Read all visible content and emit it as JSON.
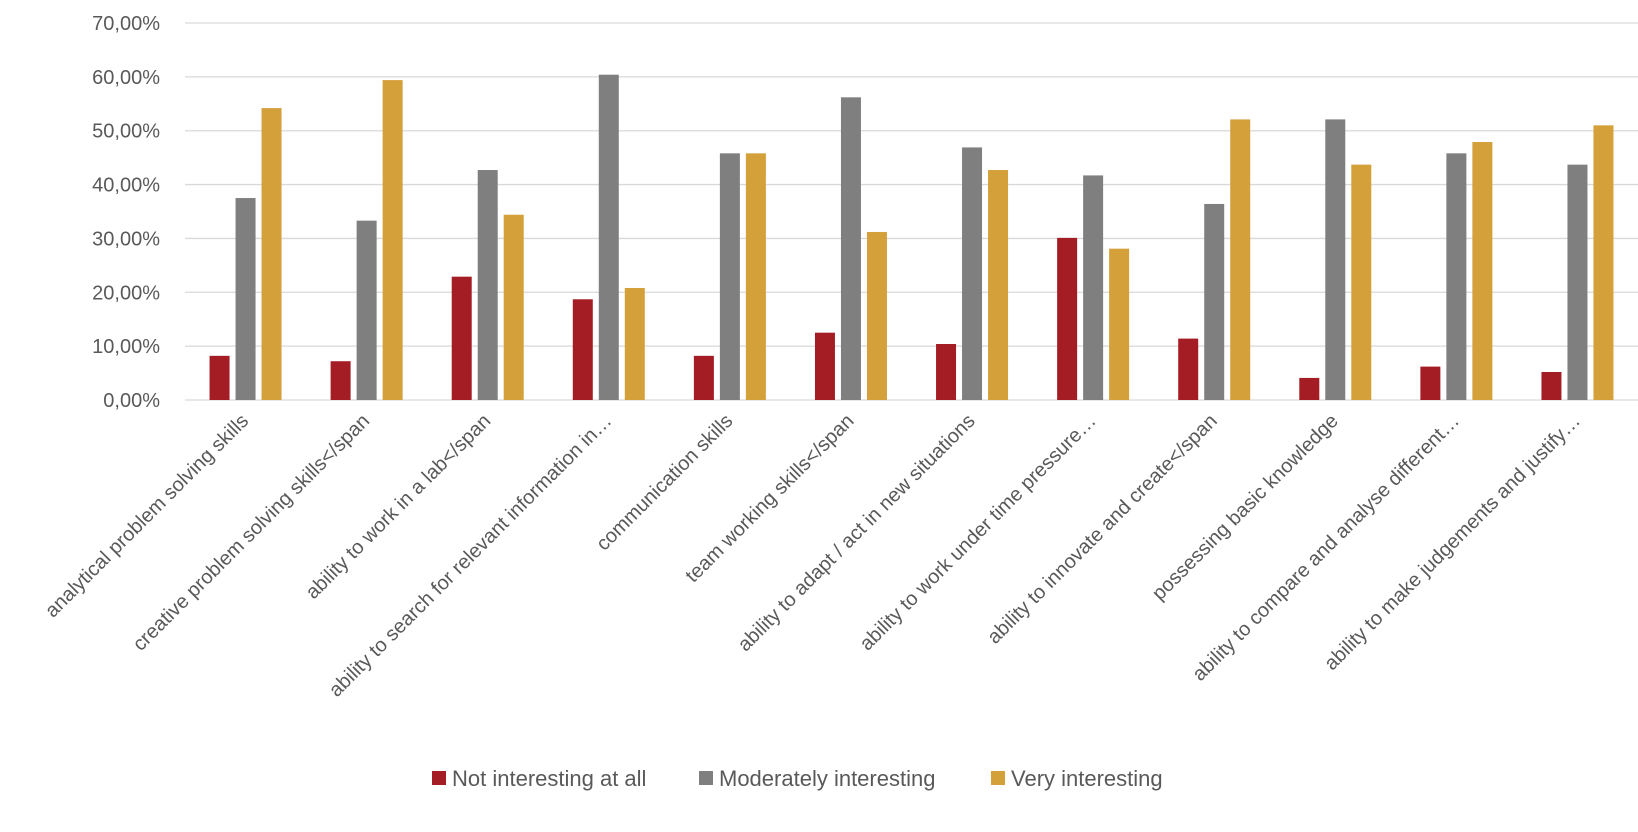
{
  "chart_data": {
    "type": "bar",
    "categories": [
      "analytical problem solving skills",
      "creative problem solving skills</span",
      "ability to work in a lab</span",
      "ability to search for relevant information in…",
      "communication skills",
      "team working skills</span",
      "ability to adapt / act in new situations",
      "ability to work under time pressure…",
      "ability to innovate and create</span",
      "possessing basic knowledge",
      "ability to compare and analyse different…",
      "ability to make judgements and justify…"
    ],
    "series": [
      {
        "name": "Not interesting at all",
        "color": "#A51D24",
        "values": [
          8.2,
          7.2,
          22.9,
          18.7,
          8.2,
          12.5,
          10.4,
          30.1,
          11.4,
          4.1,
          6.2,
          5.2
        ]
      },
      {
        "name": "Moderately interesting",
        "color": "#7F7F7F",
        "values": [
          37.5,
          33.3,
          42.7,
          60.4,
          45.8,
          56.2,
          46.9,
          41.7,
          36.4,
          52.1,
          45.8,
          43.7
        ]
      },
      {
        "name": "Very interesting",
        "color": "#D4A03A",
        "values": [
          54.2,
          59.4,
          34.4,
          20.8,
          45.8,
          31.2,
          42.7,
          28.1,
          52.1,
          43.7,
          47.9,
          51.0
        ]
      }
    ],
    "yticks": [
      "0,00%",
      "10,00%",
      "20,00%",
      "30,00%",
      "40,00%",
      "50,00%",
      "60,00%",
      "70,00%"
    ],
    "ylim": [
      0,
      70
    ],
    "grid": true,
    "legend_position": "bottom"
  }
}
